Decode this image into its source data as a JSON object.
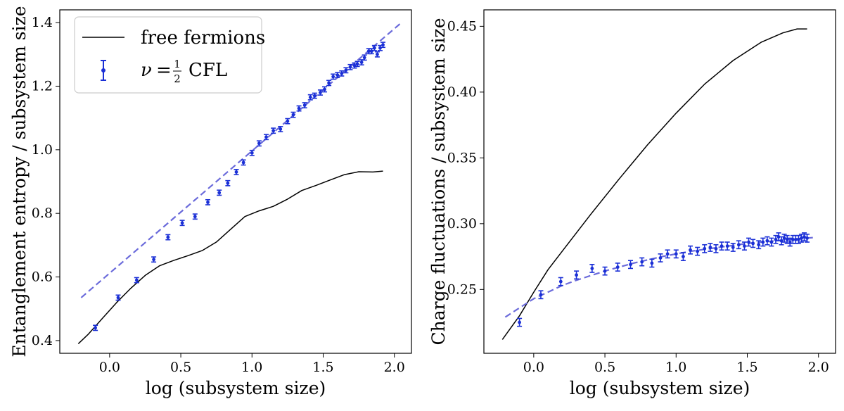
{
  "chart_data": [
    {
      "type": "line",
      "xlabel": "log (subsystem size)",
      "ylabel": "Entanglement entropy / subsystem size",
      "xlim": [
        -0.35,
        2.12
      ],
      "ylim": [
        0.36,
        1.44
      ],
      "xticks": [
        0.0,
        0.5,
        1.0,
        1.5,
        2.0
      ],
      "xtick_labels": [
        "0.0",
        "0.5",
        "1.0",
        "1.5",
        "2.0"
      ],
      "yticks": [
        0.4,
        0.6,
        0.8,
        1.0,
        1.2,
        1.4
      ],
      "ytick_labels": [
        "0.4",
        "0.6",
        "0.8",
        "1.0",
        "1.2",
        "1.4"
      ],
      "legend": {
        "position": "top-left",
        "entries": [
          {
            "label": "free fermions",
            "kind": "line"
          },
          {
            "label": "ν = ½ CFL",
            "kind": "errorbar",
            "math_symbol": "ν",
            "math_num": "1",
            "math_den": "2",
            "math_rest": "CFL"
          }
        ]
      },
      "series": [
        {
          "name": "free fermions",
          "style": "solid",
          "color": "#000000",
          "x": [
            -0.22,
            -0.15,
            -0.05,
            0.05,
            0.15,
            0.25,
            0.35,
            0.45,
            0.55,
            0.65,
            0.75,
            0.85,
            0.95,
            1.05,
            1.15,
            1.25,
            1.35,
            1.45,
            1.55,
            1.65,
            1.75,
            1.85,
            1.92
          ],
          "y": [
            0.39,
            0.42,
            0.47,
            0.52,
            0.565,
            0.605,
            0.635,
            0.652,
            0.667,
            0.683,
            0.71,
            0.75,
            0.79,
            0.808,
            0.822,
            0.845,
            0.872,
            0.888,
            0.905,
            0.922,
            0.931,
            0.93,
            0.933
          ]
        },
        {
          "name": "fit",
          "style": "dashed",
          "color": "#6b6bdb",
          "x": [
            -0.2,
            2.05
          ],
          "y": [
            0.535,
            1.4
          ]
        },
        {
          "name": "ν = ½ CFL",
          "style": "errorbar",
          "color": "#1a2fd6",
          "error": 0.008,
          "x": [
            -0.1,
            0.06,
            0.19,
            0.31,
            0.41,
            0.51,
            0.6,
            0.69,
            0.77,
            0.83,
            0.89,
            0.94,
            1.0,
            1.05,
            1.1,
            1.15,
            1.2,
            1.25,
            1.29,
            1.33,
            1.37,
            1.41,
            1.44,
            1.48,
            1.51,
            1.54,
            1.57,
            1.6,
            1.63,
            1.66,
            1.69,
            1.72,
            1.74,
            1.77,
            1.79,
            1.82,
            1.84,
            1.86,
            1.88,
            1.9,
            1.92
          ],
          "y": [
            0.44,
            0.535,
            0.59,
            0.655,
            0.725,
            0.77,
            0.79,
            0.835,
            0.865,
            0.895,
            0.93,
            0.96,
            0.99,
            1.02,
            1.04,
            1.06,
            1.065,
            1.09,
            1.11,
            1.13,
            1.14,
            1.165,
            1.17,
            1.18,
            1.19,
            1.21,
            1.23,
            1.235,
            1.24,
            1.25,
            1.26,
            1.265,
            1.27,
            1.275,
            1.29,
            1.31,
            1.31,
            1.32,
            1.3,
            1.32,
            1.33
          ]
        }
      ]
    },
    {
      "type": "line",
      "xlabel": "log (subsystem size)",
      "ylabel": "Charge fluctuations / subsystem size",
      "xlim": [
        -0.35,
        2.12
      ],
      "ylim": [
        0.2015,
        0.4625
      ],
      "xticks": [
        0.0,
        0.5,
        1.0,
        1.5,
        2.0
      ],
      "xtick_labels": [
        "0.0",
        "0.5",
        "1.0",
        "1.5",
        "2.0"
      ],
      "yticks": [
        0.25,
        0.3,
        0.35,
        0.4,
        0.45
      ],
      "ytick_labels": [
        "0.25",
        "0.30",
        "0.35",
        "0.40",
        "0.45"
      ],
      "series": [
        {
          "name": "free fermions",
          "style": "solid",
          "color": "#000000",
          "x": [
            -0.22,
            -0.1,
            0.0,
            0.1,
            0.2,
            0.4,
            0.6,
            0.8,
            1.0,
            1.2,
            1.4,
            1.6,
            1.75,
            1.85,
            1.92
          ],
          "y": [
            0.212,
            0.23,
            0.248,
            0.265,
            0.279,
            0.307,
            0.334,
            0.36,
            0.384,
            0.406,
            0.424,
            0.438,
            0.445,
            0.448,
            0.448
          ]
        },
        {
          "name": "fit",
          "style": "dashed",
          "color": "#6b6bdb",
          "x": [
            -0.2,
            -0.1,
            0.0,
            0.1,
            0.2,
            0.3,
            0.5,
            0.7,
            0.9,
            1.1,
            1.3,
            1.5,
            1.7,
            1.85,
            1.97
          ],
          "y": [
            0.229,
            0.236,
            0.243,
            0.248,
            0.253,
            0.257,
            0.264,
            0.27,
            0.275,
            0.279,
            0.282,
            0.285,
            0.287,
            0.2885,
            0.2895
          ]
        },
        {
          "name": "ν = ½ CFL",
          "style": "errorbar",
          "color": "#1a2fd6",
          "error": 0.003,
          "x": [
            -0.1,
            0.05,
            0.19,
            0.3,
            0.41,
            0.5,
            0.59,
            0.68,
            0.76,
            0.83,
            0.89,
            0.94,
            1.0,
            1.05,
            1.1,
            1.15,
            1.2,
            1.24,
            1.28,
            1.32,
            1.36,
            1.4,
            1.44,
            1.48,
            1.51,
            1.54,
            1.58,
            1.61,
            1.64,
            1.67,
            1.7,
            1.72,
            1.74,
            1.76,
            1.78,
            1.8,
            1.82,
            1.84,
            1.86,
            1.88,
            1.9,
            1.92
          ],
          "y": [
            0.225,
            0.246,
            0.256,
            0.261,
            0.266,
            0.264,
            0.267,
            0.269,
            0.271,
            0.27,
            0.274,
            0.277,
            0.277,
            0.275,
            0.28,
            0.279,
            0.281,
            0.282,
            0.281,
            0.283,
            0.283,
            0.282,
            0.284,
            0.283,
            0.286,
            0.285,
            0.284,
            0.286,
            0.287,
            0.286,
            0.288,
            0.29,
            0.287,
            0.289,
            0.288,
            0.286,
            0.288,
            0.288,
            0.288,
            0.289,
            0.29,
            0.289
          ]
        }
      ]
    }
  ]
}
